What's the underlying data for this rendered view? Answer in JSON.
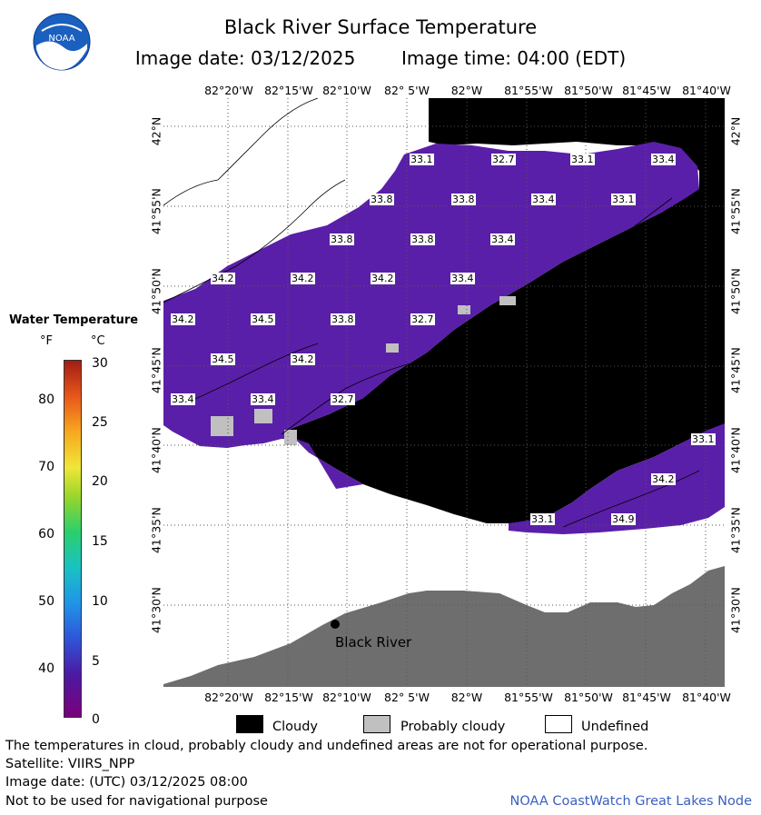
{
  "header": {
    "title": "Black River Surface Temperature",
    "image_date": "Image date: 03/12/2025",
    "image_time": "Image time: 04:00 (EDT)"
  },
  "colors": {
    "cloud": "#000000",
    "probably_cloudy": "#c0c0c0",
    "undefined": "#ffffff",
    "land": "#6e6e6e",
    "water": "#5a1fa8"
  },
  "map": {
    "longitude_labels": [
      "82°20'W",
      "82°15'W",
      "82°10'W",
      "82° 5'W",
      "82°W",
      "81°55'W",
      "81°50'W",
      "81°45'W",
      "81°40'W"
    ],
    "latitude_labels": [
      "42°N",
      "41°55'N",
      "41°50'N",
      "41°45'N",
      "41°40'N",
      "41°35'N",
      "41°30'N"
    ],
    "place_label": "Black River",
    "temperature_labels": [
      "33.1",
      "32.7",
      "33.1",
      "33.4",
      "33.8",
      "33.8",
      "33.4",
      "33.1",
      "33.8",
      "33.8",
      "33.4",
      "34.2",
      "34.2",
      "34.2",
      "33.4",
      "34.2",
      "34.5",
      "33.8",
      "32.7",
      "34.5",
      "34.2",
      "33.4",
      "33.4",
      "32.7",
      "33.1",
      "34.2",
      "33.1",
      "34.9"
    ]
  },
  "legend": {
    "title": "Water Temperature",
    "unit_f": "°F",
    "unit_c": "°C",
    "f_ticks": [
      "80",
      "70",
      "60",
      "50",
      "40"
    ],
    "c_ticks": [
      "30",
      "25",
      "20",
      "15",
      "10",
      "5",
      "0"
    ]
  },
  "key": {
    "cloudy": "Cloudy",
    "probably_cloudy": "Probably cloudy",
    "undefined": "Undefined"
  },
  "footer": {
    "disclaimer": "The temperatures in cloud, probably cloudy and undefined areas are not for operational purpose.",
    "satellite": "Satellite: VIIRS_NPP",
    "utc_date": "Image date: (UTC) 03/12/2025  08:00",
    "nav_warning": "Not to be used for navigational purpose",
    "node": "NOAA CoastWatch Great Lakes Node"
  },
  "logo_text": "NOAA"
}
